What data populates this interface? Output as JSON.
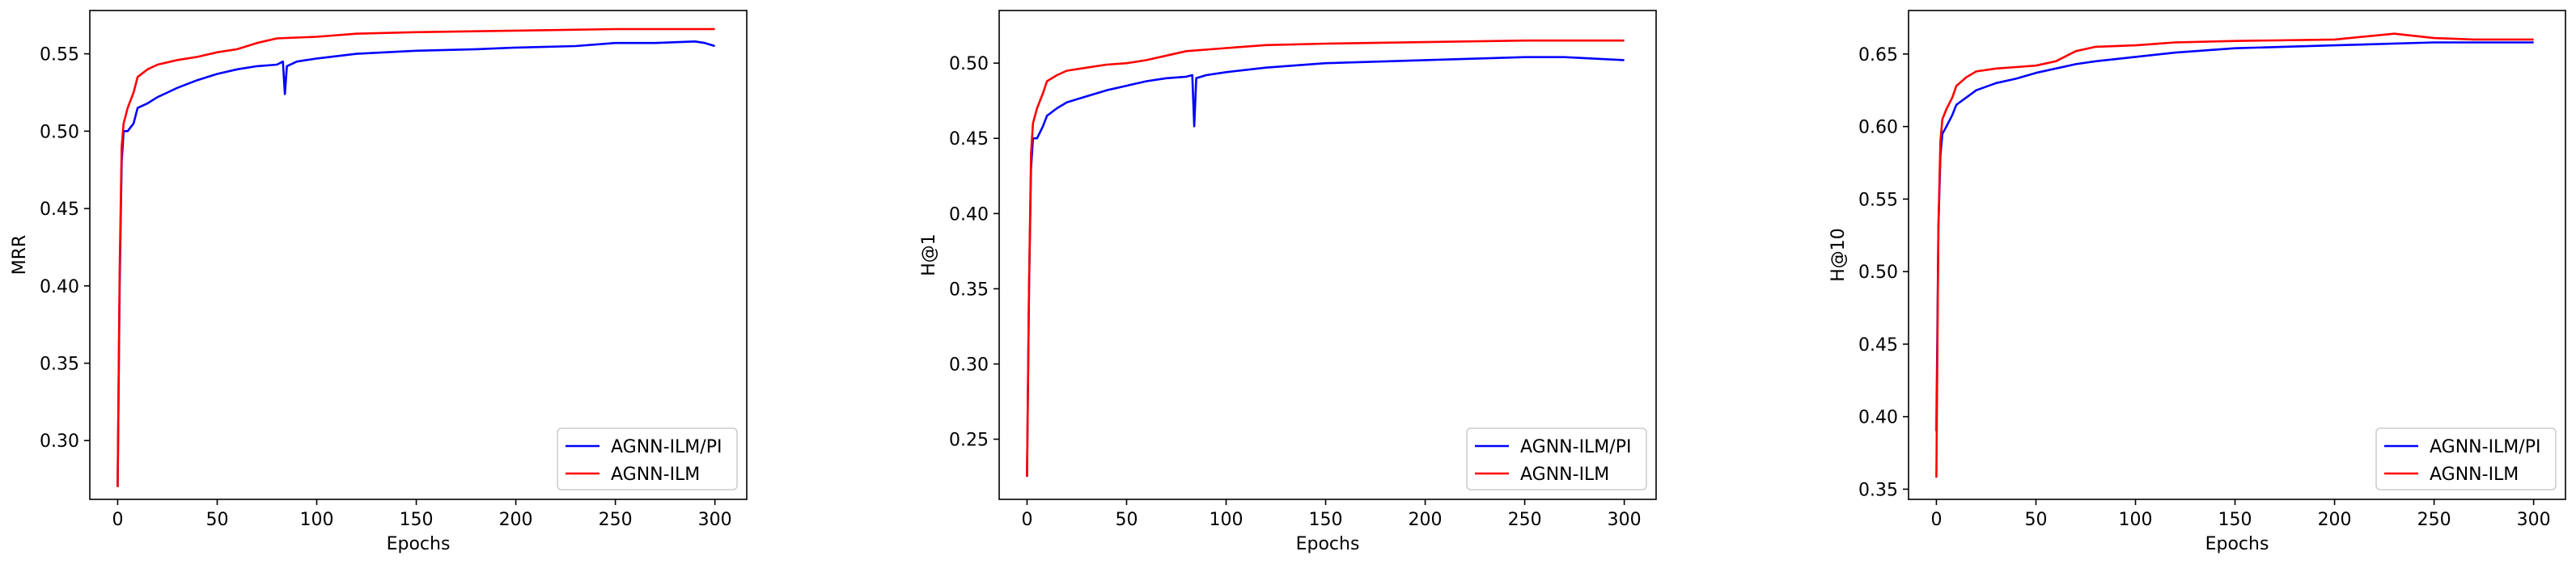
{
  "chart_data": [
    {
      "type": "line",
      "xlabel": "Epochs",
      "ylabel": "MRR",
      "xlim": [
        -14,
        316
      ],
      "ylim": [
        0.262,
        0.578
      ],
      "xticks": [
        0,
        50,
        100,
        150,
        200,
        250,
        300
      ],
      "yticks": [
        0.3,
        0.35,
        0.4,
        0.45,
        0.5,
        0.55
      ],
      "legend_position": "bottom-right",
      "series": [
        {
          "name": "AGNN-ILM/PI",
          "color": "#0000ff",
          "x": [
            0,
            1,
            2,
            3,
            5,
            8,
            10,
            15,
            20,
            25,
            30,
            40,
            50,
            60,
            70,
            80,
            83,
            84,
            85,
            90,
            100,
            120,
            150,
            180,
            200,
            230,
            250,
            270,
            290,
            295,
            300
          ],
          "y": [
            0.27,
            0.4,
            0.48,
            0.5,
            0.5,
            0.505,
            0.515,
            0.518,
            0.522,
            0.525,
            0.528,
            0.533,
            0.537,
            0.54,
            0.542,
            0.543,
            0.545,
            0.524,
            0.542,
            0.545,
            0.547,
            0.55,
            0.552,
            0.553,
            0.554,
            0.555,
            0.557,
            0.557,
            0.558,
            0.557,
            0.555
          ]
        },
        {
          "name": "AGNN-ILM",
          "color": "#ff0000",
          "x": [
            0,
            1,
            2,
            3,
            5,
            8,
            10,
            15,
            20,
            30,
            40,
            50,
            60,
            70,
            80,
            100,
            120,
            150,
            200,
            250,
            270,
            300
          ],
          "y": [
            0.27,
            0.41,
            0.49,
            0.505,
            0.515,
            0.525,
            0.535,
            0.54,
            0.543,
            0.546,
            0.548,
            0.551,
            0.553,
            0.557,
            0.56,
            0.561,
            0.563,
            0.564,
            0.565,
            0.566,
            0.566,
            0.566
          ]
        }
      ]
    },
    {
      "type": "line",
      "xlabel": "Epochs",
      "ylabel": "H@1",
      "xlim": [
        -14,
        316
      ],
      "ylim": [
        0.21,
        0.535
      ],
      "xticks": [
        0,
        50,
        100,
        150,
        200,
        250,
        300
      ],
      "yticks": [
        0.25,
        0.3,
        0.35,
        0.4,
        0.45,
        0.5
      ],
      "legend_position": "bottom-right",
      "series": [
        {
          "name": "AGNN-ILM/PI",
          "color": "#0000ff",
          "x": [
            0,
            1,
            2,
            3,
            5,
            8,
            10,
            15,
            20,
            30,
            40,
            50,
            60,
            70,
            80,
            83,
            84,
            85,
            90,
            100,
            120,
            150,
            200,
            250,
            270,
            300
          ],
          "y": [
            0.225,
            0.35,
            0.43,
            0.45,
            0.45,
            0.458,
            0.465,
            0.47,
            0.474,
            0.478,
            0.482,
            0.485,
            0.488,
            0.49,
            0.491,
            0.492,
            0.458,
            0.49,
            0.492,
            0.494,
            0.497,
            0.5,
            0.502,
            0.504,
            0.504,
            0.502
          ]
        },
        {
          "name": "AGNN-ILM",
          "color": "#ff0000",
          "x": [
            0,
            1,
            2,
            3,
            5,
            8,
            10,
            15,
            20,
            30,
            40,
            50,
            60,
            70,
            80,
            100,
            120,
            150,
            200,
            250,
            270,
            300
          ],
          "y": [
            0.225,
            0.35,
            0.44,
            0.46,
            0.47,
            0.48,
            0.488,
            0.492,
            0.495,
            0.497,
            0.499,
            0.5,
            0.502,
            0.505,
            0.508,
            0.51,
            0.512,
            0.513,
            0.514,
            0.515,
            0.515,
            0.515
          ]
        }
      ]
    },
    {
      "type": "line",
      "xlabel": "Epochs",
      "ylabel": "H@10",
      "xlim": [
        -14,
        316
      ],
      "ylim": [
        0.343,
        0.68
      ],
      "xticks": [
        0,
        50,
        100,
        150,
        200,
        250,
        300
      ],
      "yticks": [
        0.35,
        0.4,
        0.45,
        0.5,
        0.55,
        0.6,
        0.65
      ],
      "legend_position": "bottom-right",
      "series": [
        {
          "name": "AGNN-ILM/PI",
          "color": "#0000ff",
          "x": [
            0,
            1,
            2,
            3,
            5,
            8,
            10,
            15,
            20,
            30,
            40,
            50,
            60,
            70,
            80,
            100,
            120,
            150,
            200,
            250,
            270,
            300
          ],
          "y": [
            0.39,
            0.53,
            0.58,
            0.595,
            0.6,
            0.608,
            0.615,
            0.62,
            0.625,
            0.63,
            0.633,
            0.637,
            0.64,
            0.643,
            0.645,
            0.648,
            0.651,
            0.654,
            0.656,
            0.658,
            0.658,
            0.658
          ]
        },
        {
          "name": "AGNN-ILM",
          "color": "#ff0000",
          "x": [
            0,
            1,
            2,
            3,
            5,
            8,
            10,
            15,
            20,
            30,
            40,
            50,
            60,
            70,
            80,
            100,
            120,
            150,
            200,
            230,
            250,
            270,
            300
          ],
          "y": [
            0.358,
            0.53,
            0.59,
            0.605,
            0.612,
            0.62,
            0.628,
            0.634,
            0.638,
            0.64,
            0.641,
            0.642,
            0.645,
            0.652,
            0.655,
            0.656,
            0.658,
            0.659,
            0.66,
            0.664,
            0.661,
            0.66,
            0.66
          ]
        }
      ]
    }
  ]
}
